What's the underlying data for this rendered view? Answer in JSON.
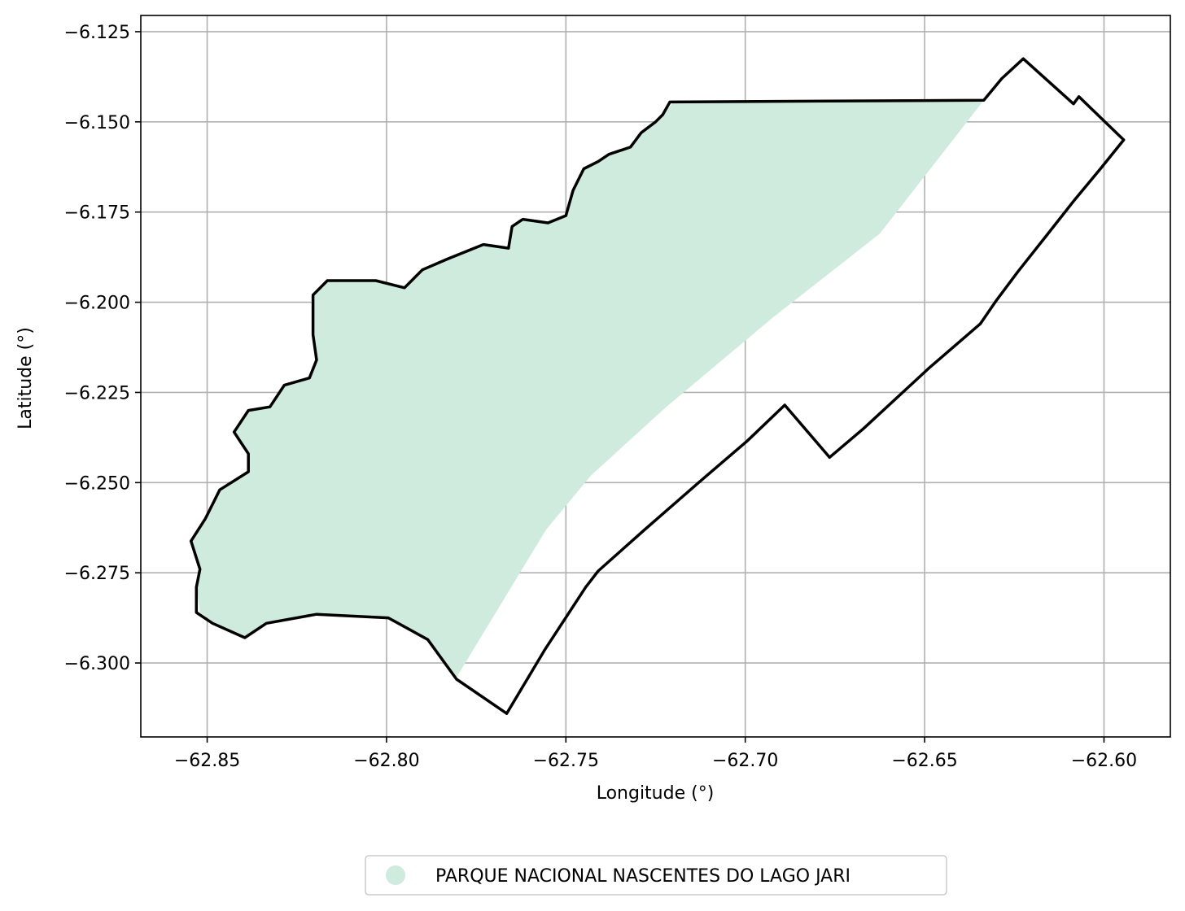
{
  "chart_data": {
    "type": "map",
    "xlabel": "Longitude (°)",
    "ylabel": "Latitude (°)",
    "xlim": [
      -62.8685,
      -62.5815
    ],
    "ylim": [
      -6.3205,
      -6.1205
    ],
    "xticks": [
      -62.85,
      -62.8,
      -62.75,
      -62.7,
      -62.65,
      -62.6
    ],
    "xtick_labels": [
      "−62.85",
      "−62.80",
      "−62.75",
      "−62.70",
      "−62.65",
      "−62.60"
    ],
    "yticks": [
      -6.125,
      -6.15,
      -6.175,
      -6.2,
      -6.225,
      -6.25,
      -6.275,
      -6.3
    ],
    "ytick_labels": [
      "−6.125",
      "−6.150",
      "−6.175",
      "−6.200",
      "−6.225",
      "−6.250",
      "−6.275",
      "−6.300"
    ],
    "grid": true,
    "legend_position": "bottom-center",
    "legend": [
      {
        "label": "PARQUE NACIONAL NASCENTES DO LAGO JARI",
        "color": "#cfebdd",
        "marker": "circle"
      }
    ],
    "fill_color": "#cfebdd",
    "outline_color": "#000000",
    "filled_area": [
      [
        -62.8545,
        -6.2662
      ],
      [
        -62.8505,
        -6.26
      ],
      [
        -62.8465,
        -6.252
      ],
      [
        -62.8385,
        -6.247
      ],
      [
        -62.8385,
        -6.242
      ],
      [
        -62.8425,
        -6.236
      ],
      [
        -62.8385,
        -6.23
      ],
      [
        -62.8325,
        -6.229
      ],
      [
        -62.8285,
        -6.223
      ],
      [
        -62.8215,
        -6.221
      ],
      [
        -62.8195,
        -6.216
      ],
      [
        -62.8205,
        -6.209
      ],
      [
        -62.8205,
        -6.198
      ],
      [
        -62.8165,
        -6.194
      ],
      [
        -62.803,
        -6.194
      ],
      [
        -62.795,
        -6.196
      ],
      [
        -62.79,
        -6.191
      ],
      [
        -62.783,
        -6.188
      ],
      [
        -62.773,
        -6.184
      ],
      [
        -62.766,
        -6.185
      ],
      [
        -62.765,
        -6.179
      ],
      [
        -62.762,
        -6.177
      ],
      [
        -62.755,
        -6.178
      ],
      [
        -62.75,
        -6.176
      ],
      [
        -62.748,
        -6.169
      ],
      [
        -62.745,
        -6.163
      ],
      [
        -62.741,
        -6.161
      ],
      [
        -62.738,
        -6.159
      ],
      [
        -62.732,
        -6.157
      ],
      [
        -62.729,
        -6.153
      ],
      [
        -62.725,
        -6.15
      ],
      [
        -62.723,
        -6.148
      ],
      [
        -62.72,
        -6.1445
      ],
      [
        -62.6335,
        -6.144
      ],
      [
        -62.6625,
        -6.181
      ],
      [
        -62.692,
        -6.204
      ],
      [
        -62.722,
        -6.229
      ],
      [
        -62.743,
        -6.248
      ],
      [
        -62.7555,
        -6.263
      ],
      [
        -62.7805,
        -6.304
      ],
      [
        -62.7885,
        -6.293
      ],
      [
        -62.7995,
        -6.2875
      ],
      [
        -62.8195,
        -6.2865
      ],
      [
        -62.8335,
        -6.289
      ],
      [
        -62.8395,
        -6.293
      ],
      [
        -62.8485,
        -6.2885
      ],
      [
        -62.852,
        -6.286
      ],
      [
        -62.853,
        -6.278
      ],
      [
        -62.852,
        -6.273
      ],
      [
        -62.8545,
        -6.2662
      ]
    ],
    "boundary": [
      [
        -62.8545,
        -6.2662
      ],
      [
        -62.8505,
        -6.26
      ],
      [
        -62.8485,
        -6.256
      ],
      [
        -62.8465,
        -6.252
      ],
      [
        -62.8385,
        -6.247
      ],
      [
        -62.8385,
        -6.242
      ],
      [
        -62.8425,
        -6.236
      ],
      [
        -62.8385,
        -6.23
      ],
      [
        -62.8325,
        -6.229
      ],
      [
        -62.8285,
        -6.223
      ],
      [
        -62.8215,
        -6.221
      ],
      [
        -62.8195,
        -6.216
      ],
      [
        -62.8205,
        -6.209
      ],
      [
        -62.8205,
        -6.198
      ],
      [
        -62.8165,
        -6.194
      ],
      [
        -62.803,
        -6.194
      ],
      [
        -62.795,
        -6.196
      ],
      [
        -62.79,
        -6.191
      ],
      [
        -62.783,
        -6.188
      ],
      [
        -62.773,
        -6.184
      ],
      [
        -62.766,
        -6.185
      ],
      [
        -62.765,
        -6.179
      ],
      [
        -62.762,
        -6.177
      ],
      [
        -62.755,
        -6.178
      ],
      [
        -62.75,
        -6.176
      ],
      [
        -62.748,
        -6.169
      ],
      [
        -62.745,
        -6.163
      ],
      [
        -62.741,
        -6.161
      ],
      [
        -62.738,
        -6.159
      ],
      [
        -62.732,
        -6.157
      ],
      [
        -62.729,
        -6.153
      ],
      [
        -62.725,
        -6.15
      ],
      [
        -62.723,
        -6.148
      ],
      [
        -62.721,
        -6.1445
      ],
      [
        -62.6335,
        -6.144
      ],
      [
        -62.6285,
        -6.138
      ],
      [
        -62.6225,
        -6.1325
      ],
      [
        -62.6085,
        -6.145
      ],
      [
        -62.607,
        -6.143
      ],
      [
        -62.5945,
        -6.155
      ],
      [
        -62.601,
        -6.163
      ],
      [
        -62.6085,
        -6.172
      ],
      [
        -62.616,
        -6.1815
      ],
      [
        -62.624,
        -6.1915
      ],
      [
        -62.63,
        -6.1995
      ],
      [
        -62.6345,
        -6.206
      ],
      [
        -62.6485,
        -6.218
      ],
      [
        -62.667,
        -6.235
      ],
      [
        -62.6765,
        -6.243
      ],
      [
        -62.689,
        -6.2285
      ],
      [
        -62.6995,
        -6.2385
      ],
      [
        -62.713,
        -6.25
      ],
      [
        -62.728,
        -6.263
      ],
      [
        -62.741,
        -6.2745
      ],
      [
        -62.7445,
        -6.279
      ],
      [
        -62.756,
        -6.2965
      ],
      [
        -62.7665,
        -6.314
      ],
      [
        -62.7805,
        -6.3045
      ],
      [
        -62.7885,
        -6.2935
      ],
      [
        -62.7995,
        -6.2875
      ],
      [
        -62.8195,
        -6.2865
      ],
      [
        -62.8335,
        -6.289
      ],
      [
        -62.8395,
        -6.293
      ],
      [
        -62.8485,
        -6.289
      ],
      [
        -62.853,
        -6.286
      ],
      [
        -62.853,
        -6.279
      ],
      [
        -62.852,
        -6.274
      ],
      [
        -62.8545,
        -6.2662
      ]
    ]
  }
}
